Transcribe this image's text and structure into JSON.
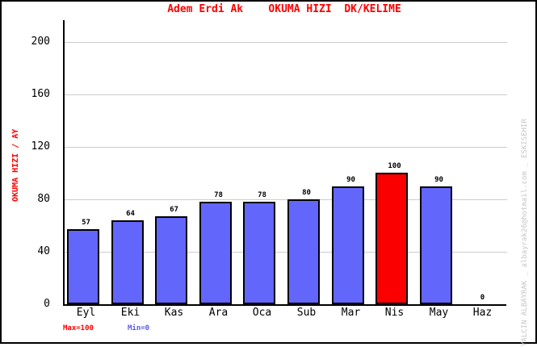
{
  "title": "Adem Erdi Ak    OKUMA HIZI  DK/KELIME",
  "y_axis_label": "OKUMA HIZI / AY",
  "footer": {
    "max_label": "Max=100",
    "min_label": "Min=0"
  },
  "watermark": "YALCIN ALBAYRAK _ albayrak26@hotmail.com _ ESKISEHIR",
  "colors": {
    "title_red": "#ff0000",
    "bar_blue": "#6366fa",
    "bar_highlight_red": "#fa0000",
    "grid_gray": "#cccccc",
    "axis_black": "#000000",
    "min_label_blue": "#5a5ae0",
    "watermark_gray": "#c6c6c6",
    "background": "#ffffff"
  },
  "chart_data": {
    "type": "bar",
    "title": "Adem Erdi Ak    OKUMA HIZI  DK/KELIME",
    "categories": [
      "Eyl",
      "Eki",
      "Kas",
      "Ara",
      "Oca",
      "Sub",
      "Mar",
      "Nis",
      "May",
      "Haz"
    ],
    "values": [
      57,
      64,
      67,
      78,
      78,
      80,
      90,
      100,
      90,
      0
    ],
    "bar_colors": [
      "#6366fa",
      "#6366fa",
      "#6366fa",
      "#6366fa",
      "#6366fa",
      "#6366fa",
      "#6366fa",
      "#fa0000",
      "#6366fa",
      "#6366fa"
    ],
    "highlighted_category": "Nis",
    "value_labels_shown": true,
    "xlabel": "",
    "ylabel": "OKUMA HIZI / AY",
    "ylim": [
      0,
      216
    ],
    "yticks": [
      0,
      40,
      80,
      120,
      160,
      200
    ],
    "grid": "horizontal",
    "legend_position": "none",
    "annotations": [
      "Max=100",
      "Min=0"
    ]
  }
}
